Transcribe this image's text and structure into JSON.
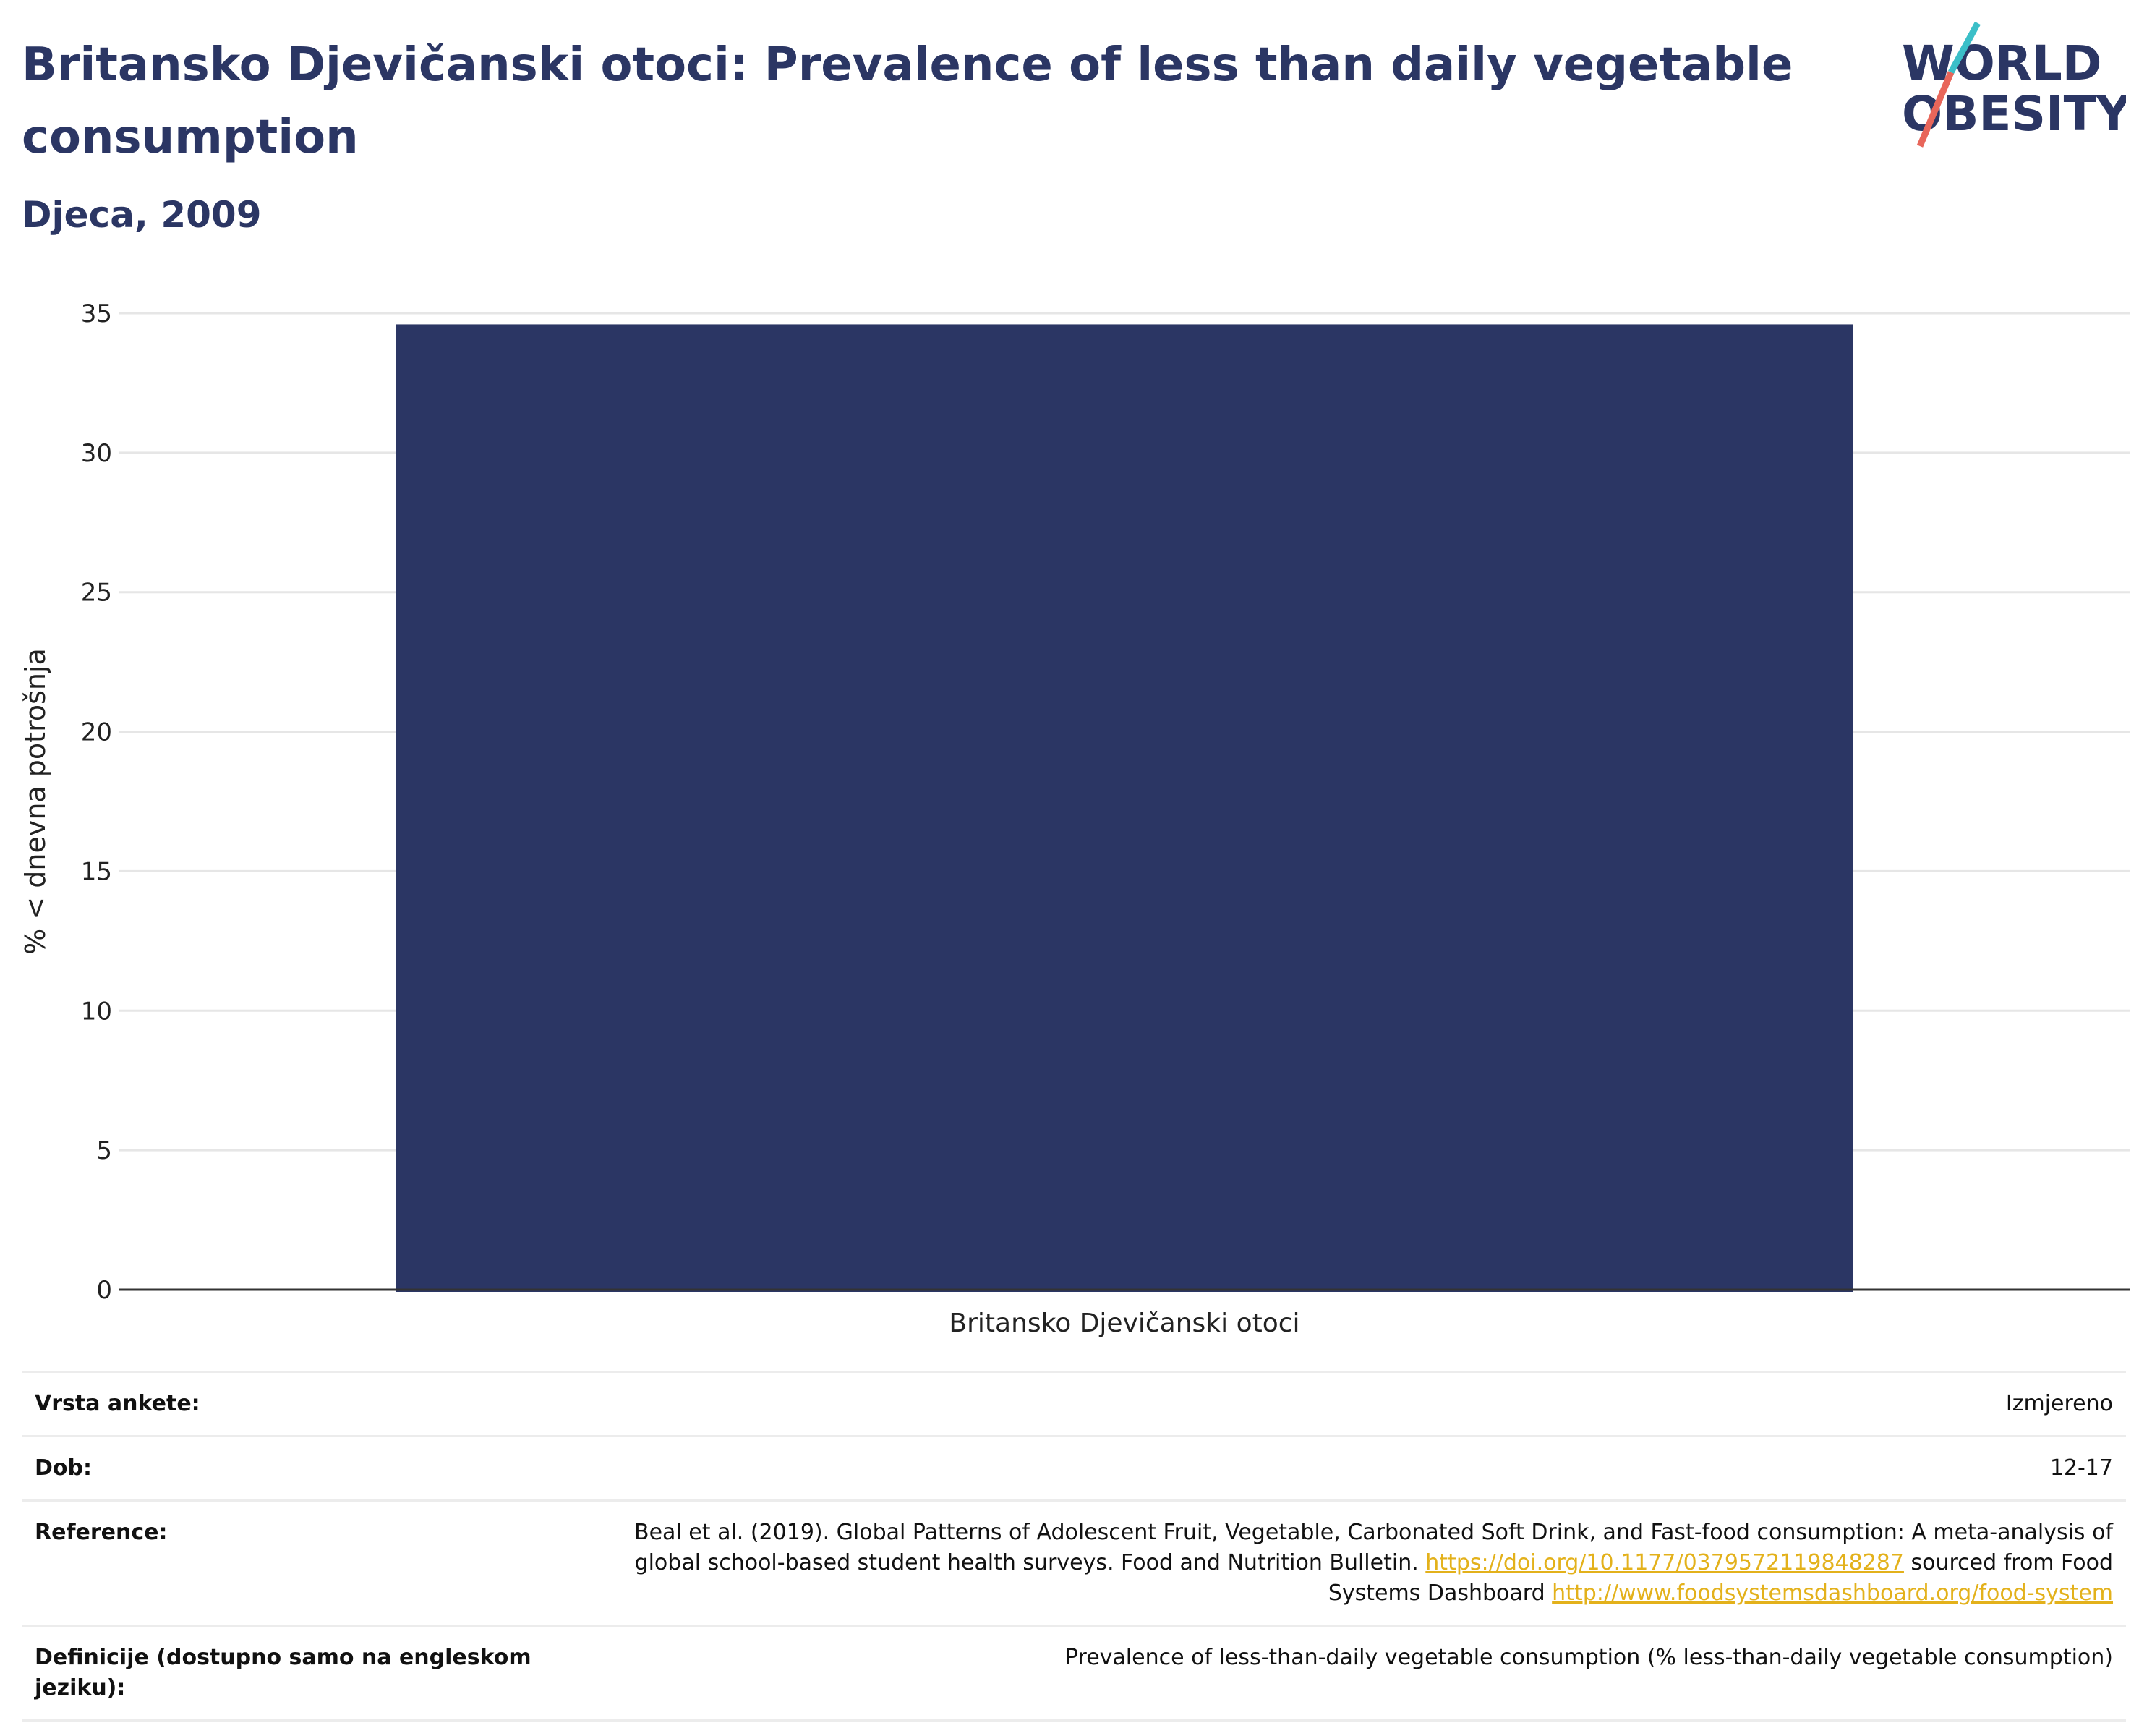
{
  "header": {
    "title": "Britansko Djevičanski otoci: Prevalence of less than daily vegetable consumption",
    "subtitle": "Djeca, 2009"
  },
  "logo": {
    "line1": "WORLD",
    "line2": "OBESITY",
    "colors": {
      "text": "#2b3664",
      "slash_top": "#3bbfc8",
      "slash_bottom": "#e8665a"
    }
  },
  "colors": {
    "bar": "#2b3664",
    "grid": "#e6e6e6",
    "axis": "#333333",
    "link": "#e3b11b"
  },
  "chart_data": {
    "type": "bar",
    "categories": [
      "Britansko Djevičanski otoci"
    ],
    "values": [
      34.6
    ],
    "title": "",
    "xlabel": "",
    "ylabel": "% < dnevna potrošnja",
    "ylim": [
      0,
      35
    ],
    "yticks": [
      0,
      5,
      10,
      15,
      20,
      25,
      30,
      35
    ],
    "grid": true,
    "legend": "none"
  },
  "meta": {
    "survey_label": "Vrsta ankete:",
    "survey_value": "Izmjereno",
    "age_label": "Dob:",
    "age_value": "12-17",
    "ref_label": "Reference:",
    "ref_text1": "Beal et al. (2019). Global Patterns of Adolescent Fruit, Vegetable, Carbonated Soft Drink, and Fast-food consumption: A meta-analysis of global school-based student health surveys. Food and Nutrition Bulletin. ",
    "ref_link1": "https://doi.org/10.1177/0379572119848287",
    "ref_text2": " sourced from Food Systems Dashboard ",
    "ref_link2": "http://www.foodsystemsdashboard.org/food-system",
    "def_label": "Definicije (dostupno samo na engleskom jeziku):",
    "def_value": "Prevalence of less-than-daily vegetable consumption (% less-than-daily vegetable consumption)"
  }
}
